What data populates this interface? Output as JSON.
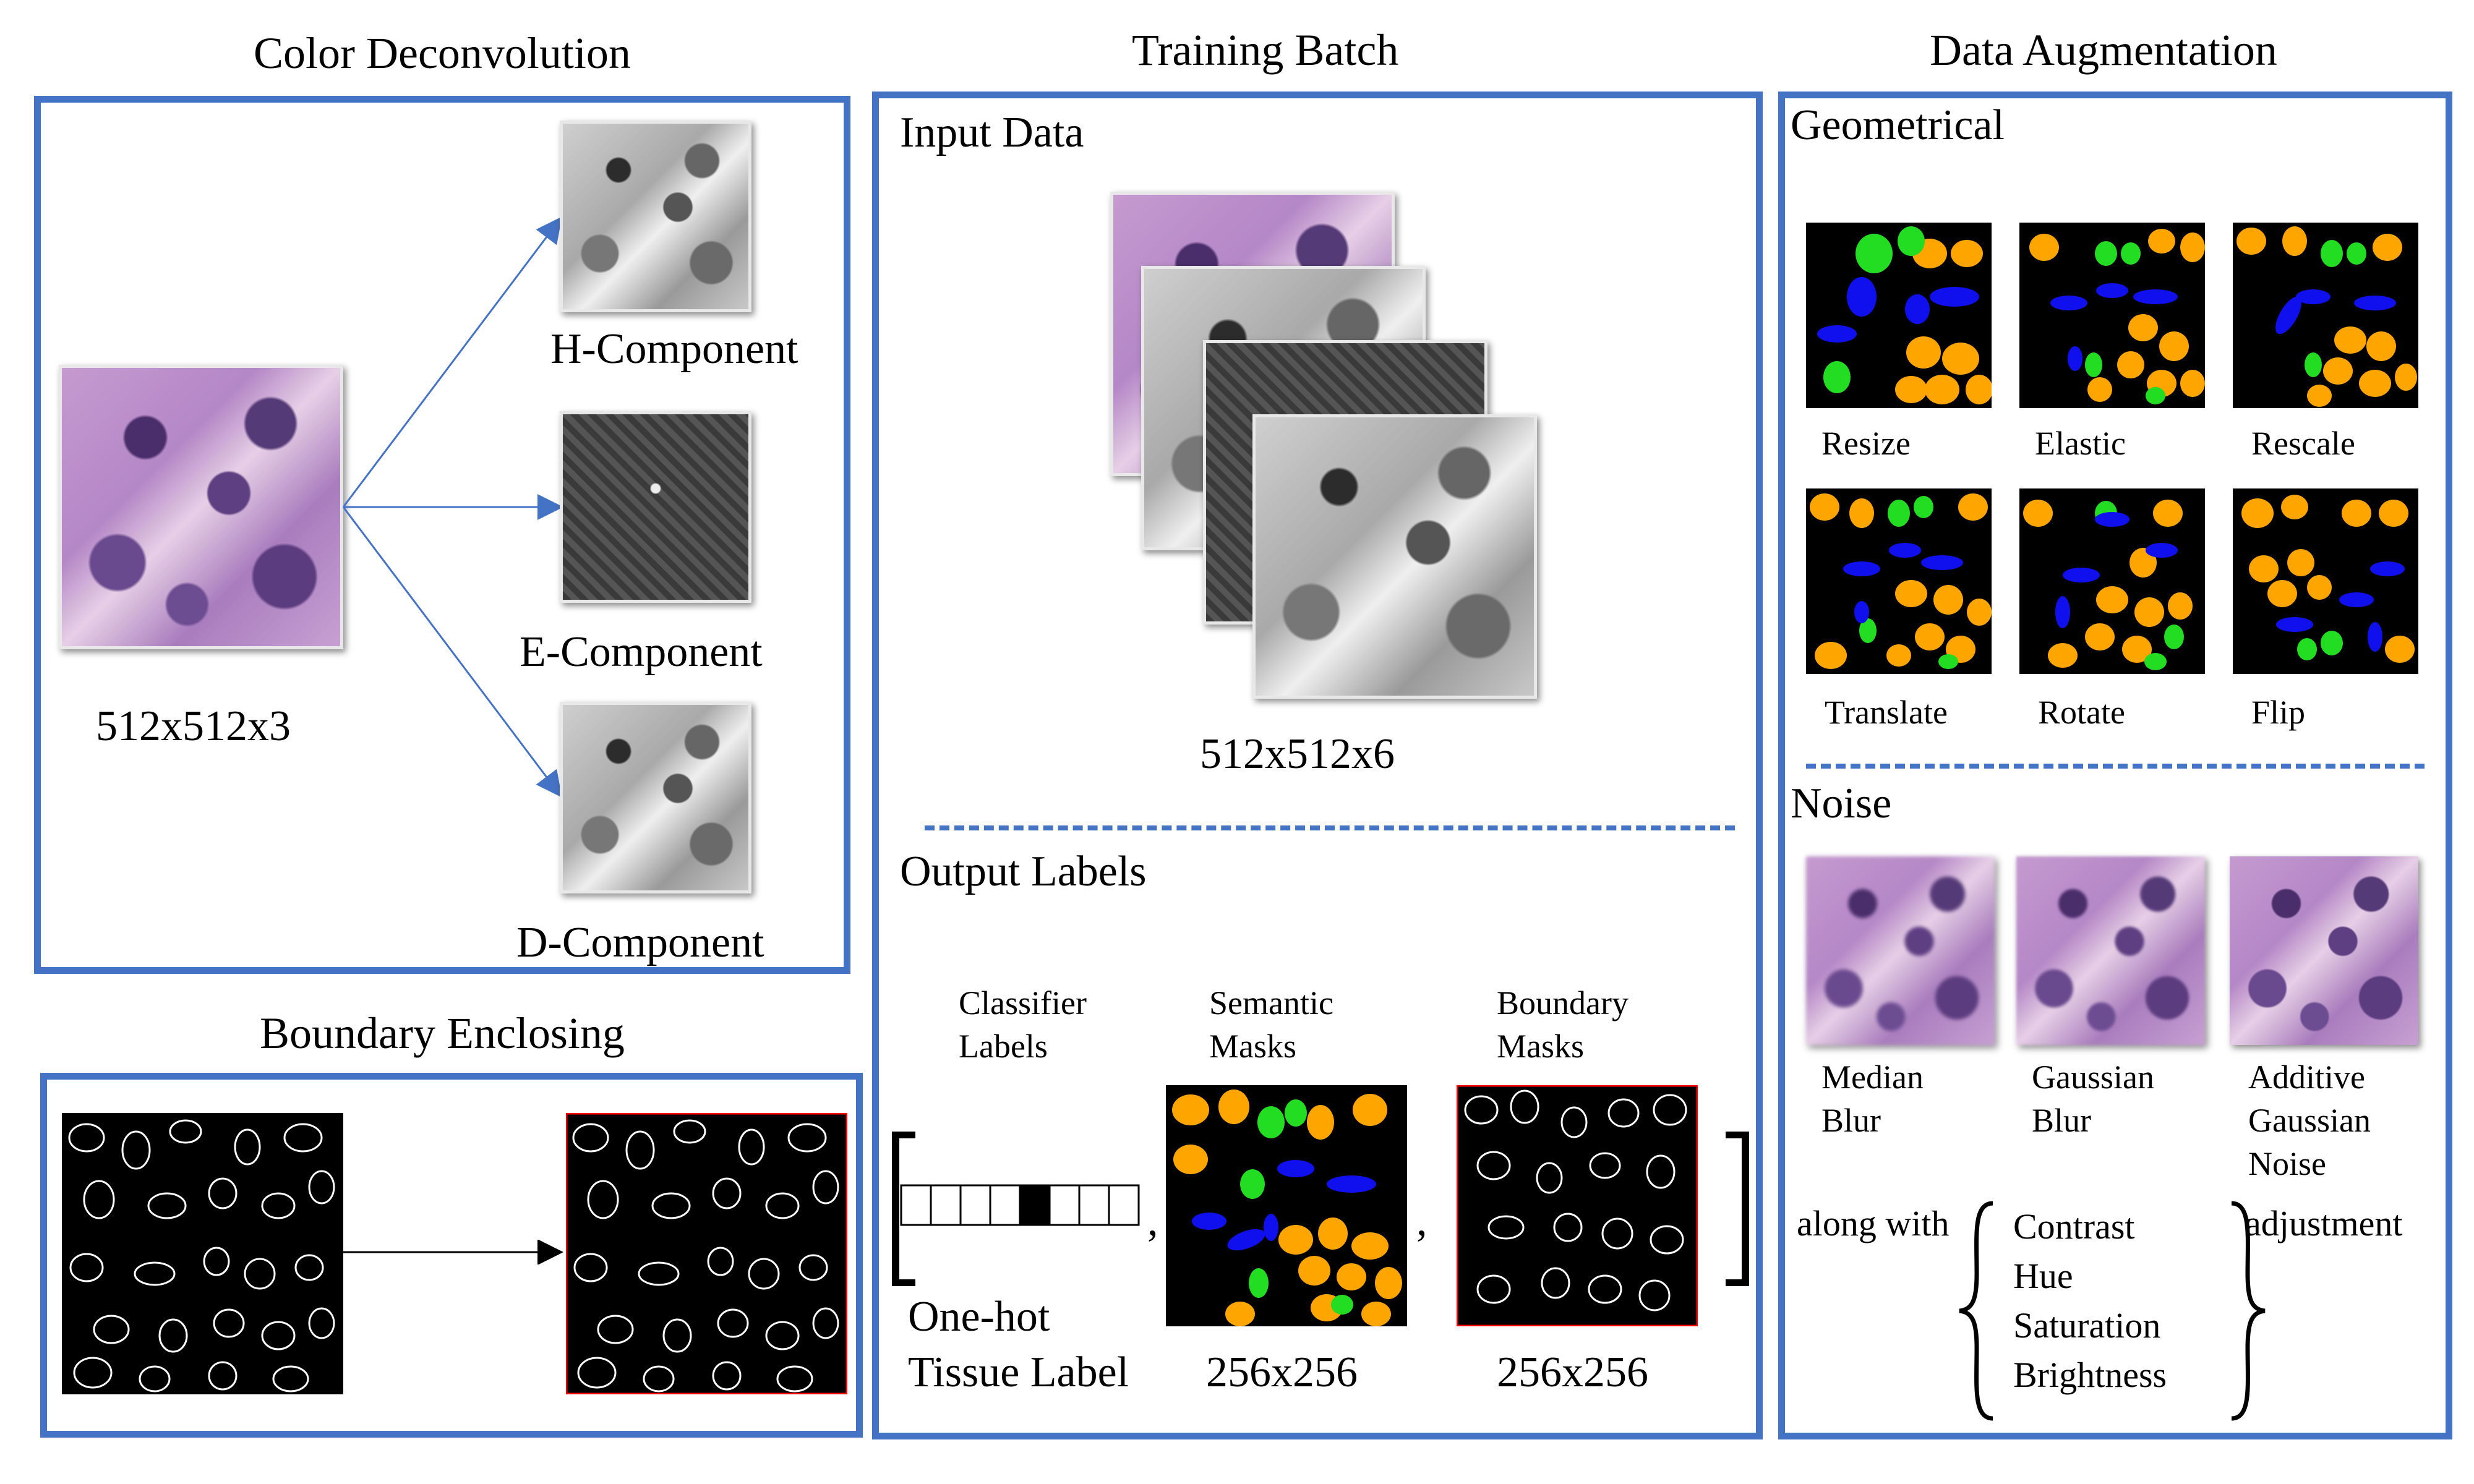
{
  "colors": {
    "panel_border": "#4472C4",
    "orange_class": "#FFA500",
    "green_class": "#22DD22",
    "blue_class": "#1010EE",
    "boundary_red": "#FF0000"
  },
  "color_deconvolution": {
    "title": "Color Deconvolution",
    "input_size": "512x512x3",
    "components": [
      "H-Component",
      "E-Component",
      "D-Component"
    ]
  },
  "boundary_enclosing": {
    "title": "Boundary Enclosing"
  },
  "training_batch": {
    "title": "Training Batch",
    "input_title": "Input Data",
    "input_size": "512x512x6",
    "output_title": "Output Labels",
    "classifier_header": [
      "Classifier",
      "Labels"
    ],
    "semantic_header": [
      "Semantic",
      "Masks"
    ],
    "boundary_header": [
      "Boundary",
      "Masks"
    ],
    "one_hot_caption": [
      "One-hot",
      "Tissue Label"
    ],
    "semantic_size": "256x256",
    "boundary_size": "256x256",
    "comma": ","
  },
  "data_augmentation": {
    "title": "Data Augmentation",
    "geometrical_title": "Geometrical",
    "geometrical_labels": [
      "Resize",
      "Elastic",
      "Rescale",
      "Translate",
      "Rotate",
      "Flip"
    ],
    "noise_title": "Noise",
    "noise_labels": [
      [
        "Median",
        "Blur"
      ],
      [
        "Gaussian",
        "Blur"
      ],
      [
        "Additive",
        "Gaussian",
        "Noise"
      ]
    ],
    "along_with": "along with",
    "adjustments": [
      "Contrast",
      "Hue",
      "Saturation",
      "Brightness"
    ],
    "adjustment": "adjustment"
  }
}
